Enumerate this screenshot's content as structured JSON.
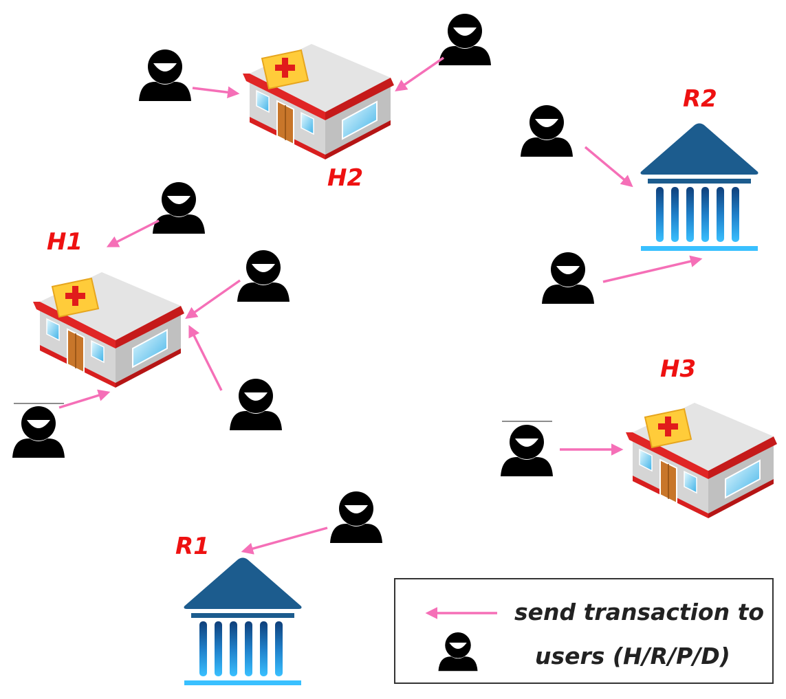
{
  "nodes": {
    "h1": {
      "label": "H1",
      "type": "hospital-icon"
    },
    "h2": {
      "label": "H2",
      "type": "hospital-icon"
    },
    "h3": {
      "label": "H3",
      "type": "hospital-icon"
    },
    "r1": {
      "label": "R1",
      "type": "bank-icon"
    },
    "r2": {
      "label": "R2",
      "type": "bank-icon"
    }
  },
  "legend": {
    "line1": "send transaction to",
    "line2": "users (H/R/P/D)",
    "arrow_icon": "pink-arrow-icon",
    "user_icon": "user-icon"
  },
  "colors": {
    "arrow": "#f56fb7",
    "label": "#ee1111",
    "user": "#000000",
    "bank_roof": "#1c5c8e",
    "bank_column": "#2aa4e8"
  }
}
